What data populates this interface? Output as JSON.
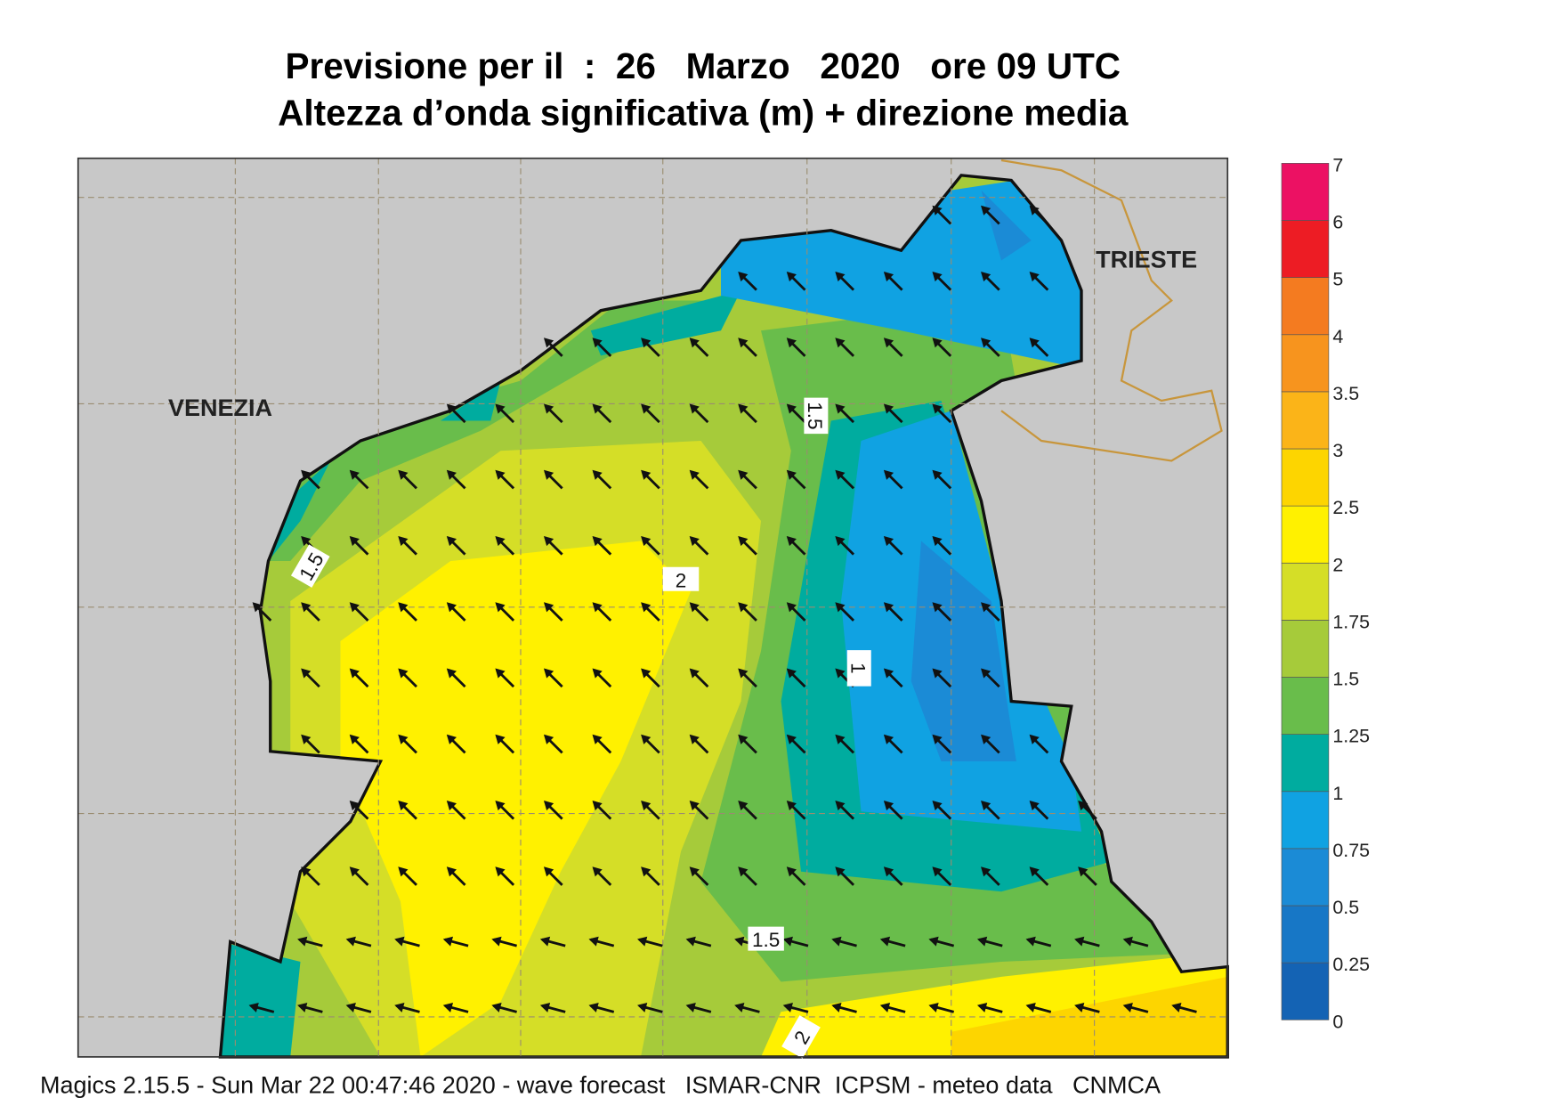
{
  "header": {
    "title": "Previsione per il  :  26   Marzo   2020   ore 09 UTC",
    "subtitle": "Altezza d’onda significativa (m) + direzione media"
  },
  "map": {
    "places": [
      "VENEZIA",
      "TRIESTE"
    ],
    "contour_labels": [
      1.5,
      1.5,
      2,
      1,
      1.5,
      2
    ]
  },
  "colorbar": {
    "levels": [
      0,
      0.25,
      0.5,
      0.75,
      1,
      1.25,
      1.5,
      1.75,
      2,
      2.5,
      3,
      3.5,
      4,
      5,
      6,
      7
    ],
    "colors": [
      "#1463b4",
      "#1777c6",
      "#1b8bd6",
      "#10a2e2",
      "#00ac9f",
      "#69bd4b",
      "#a6cb3a",
      "#d5de27",
      "#fff100",
      "#fdd500",
      "#fbb418",
      "#f7941e",
      "#f47b20",
      "#ed1c24",
      "#ec1163"
    ]
  },
  "footer": "Magics 2.15.5 - Sun Mar 22 00:47:46 2020 - wave forecast   ISMAR-CNR  ICPSM - meteo data   CNMCA"
}
